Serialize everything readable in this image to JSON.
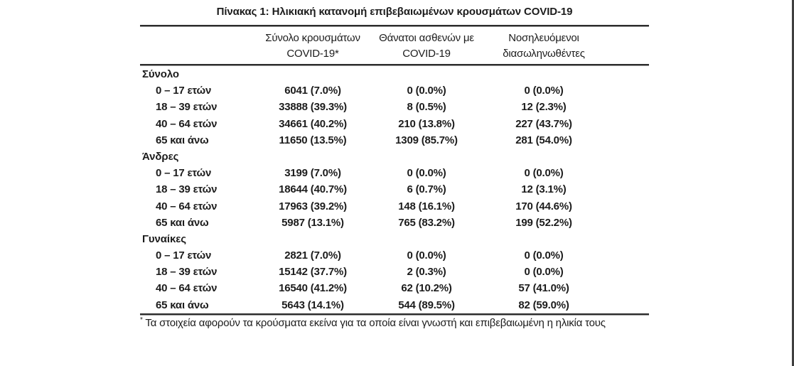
{
  "page": {
    "title": "Πίνακας 1: Ηλικιακή κατανομή επιβεβαιωμένων κρουσμάτων COVID-19",
    "footnote_marker": "*",
    "footnote_text": " Τα στοιχεία αφορούν τα κρούσματα εκείνα για τα οποία είναι γνωστή και επιβεβαιωμένη η ηλικία τους"
  },
  "table": {
    "columns": [
      {
        "line1": "Σύνολο κρουσμάτων",
        "line2": "COVID-19*"
      },
      {
        "line1": "Θάνατοι ασθενών με",
        "line2": "COVID-19"
      },
      {
        "line1": "Νοσηλευόμενοι",
        "line2": "διασωληνωθέντες"
      }
    ],
    "groups": [
      {
        "label": "Σύνολο",
        "rows": [
          {
            "age": "0 – 17 ετών",
            "cases": "6041 (7.0%)",
            "deaths": "0 (0.0%)",
            "intubated": "0 (0.0%)"
          },
          {
            "age": "18 – 39 ετών",
            "cases": "33888 (39.3%)",
            "deaths": "8 (0.5%)",
            "intubated": "12 (2.3%)"
          },
          {
            "age": "40 – 64 ετών",
            "cases": "34661 (40.2%)",
            "deaths": "210 (13.8%)",
            "intubated": "227 (43.7%)"
          },
          {
            "age": "65 και άνω",
            "cases": "11650 (13.5%)",
            "deaths": "1309 (85.7%)",
            "intubated": "281 (54.0%)"
          }
        ]
      },
      {
        "label": "Άνδρες",
        "rows": [
          {
            "age": "0 – 17 ετών",
            "cases": "3199 (7.0%)",
            "deaths": "0 (0.0%)",
            "intubated": "0 (0.0%)"
          },
          {
            "age": "18 – 39 ετών",
            "cases": "18644 (40.7%)",
            "deaths": "6 (0.7%)",
            "intubated": "12 (3.1%)"
          },
          {
            "age": "40 – 64 ετών",
            "cases": "17963 (39.2%)",
            "deaths": "148 (16.1%)",
            "intubated": "170 (44.6%)"
          },
          {
            "age": "65 και άνω",
            "cases": "5987 (13.1%)",
            "deaths": "765 (83.2%)",
            "intubated": "199 (52.2%)"
          }
        ]
      },
      {
        "label": "Γυναίκες",
        "rows": [
          {
            "age": "0 – 17 ετών",
            "cases": "2821 (7.0%)",
            "deaths": "0 (0.0%)",
            "intubated": "0 (0.0%)"
          },
          {
            "age": "18 – 39 ετών",
            "cases": "15142 (37.7%)",
            "deaths": "2 (0.3%)",
            "intubated": "0 (0.0%)"
          },
          {
            "age": "40 – 64 ετών",
            "cases": "16540 (41.2%)",
            "deaths": "62 (10.2%)",
            "intubated": "57 (41.0%)"
          },
          {
            "age": "65 και άνω",
            "cases": "5643 (14.1%)",
            "deaths": "544 (89.5%)",
            "intubated": "82 (59.0%)"
          }
        ]
      }
    ]
  },
  "chart_data": {
    "type": "table",
    "title": "Πίνακας 1: Ηλικιακή κατανομή επιβεβαιωμένων κρουσμάτων COVID-19",
    "columns": [
      "",
      "Σύνολο κρουσμάτων COVID-19*",
      "Θάνατοι ασθενών με COVID-19",
      "Νοσηλευόμενοι διασωληνωθέντες"
    ],
    "rows": [
      [
        "Σύνολο",
        "",
        "",
        ""
      ],
      [
        "0 – 17 ετών",
        "6041 (7.0%)",
        "0 (0.0%)",
        "0 (0.0%)"
      ],
      [
        "18 – 39 ετών",
        "33888 (39.3%)",
        "8 (0.5%)",
        "12 (2.3%)"
      ],
      [
        "40 – 64 ετών",
        "34661 (40.2%)",
        "210 (13.8%)",
        "227 (43.7%)"
      ],
      [
        "65 και άνω",
        "11650 (13.5%)",
        "1309 (85.7%)",
        "281 (54.0%)"
      ],
      [
        "Άνδρες",
        "",
        "",
        ""
      ],
      [
        "0 – 17 ετών",
        "3199 (7.0%)",
        "0 (0.0%)",
        "0 (0.0%)"
      ],
      [
        "18 – 39 ετών",
        "18644 (40.7%)",
        "6 (0.7%)",
        "12 (3.1%)"
      ],
      [
        "40 – 64 ετών",
        "17963 (39.2%)",
        "148 (16.1%)",
        "170 (44.6%)"
      ],
      [
        "65 και άνω",
        "5987 (13.1%)",
        "765 (83.2%)",
        "199 (52.2%)"
      ],
      [
        "Γυναίκες",
        "",
        "",
        ""
      ],
      [
        "0 – 17 ετών",
        "2821 (7.0%)",
        "0 (0.0%)",
        "0 (0.0%)"
      ],
      [
        "18 – 39 ετών",
        "15142 (37.7%)",
        "2 (0.3%)",
        "0 (0.0%)"
      ],
      [
        "40 – 64 ετών",
        "16540 (41.2%)",
        "62 (10.2%)",
        "57 (41.0%)"
      ],
      [
        "65 και άνω",
        "5643 (14.1%)",
        "544 (89.5%)",
        "82 (59.0%)"
      ]
    ],
    "footnote": "* Τα στοιχεία αφορούν τα κρούσματα εκείνα για τα οποία είναι γνωστή και επιβεβαιωμένη η ηλικία τους",
    "colors": {
      "text": "#1c1c1c",
      "rule": "#2c2c2c",
      "right_edge_line": "#3f3f3f",
      "background": "#ffffff"
    }
  }
}
